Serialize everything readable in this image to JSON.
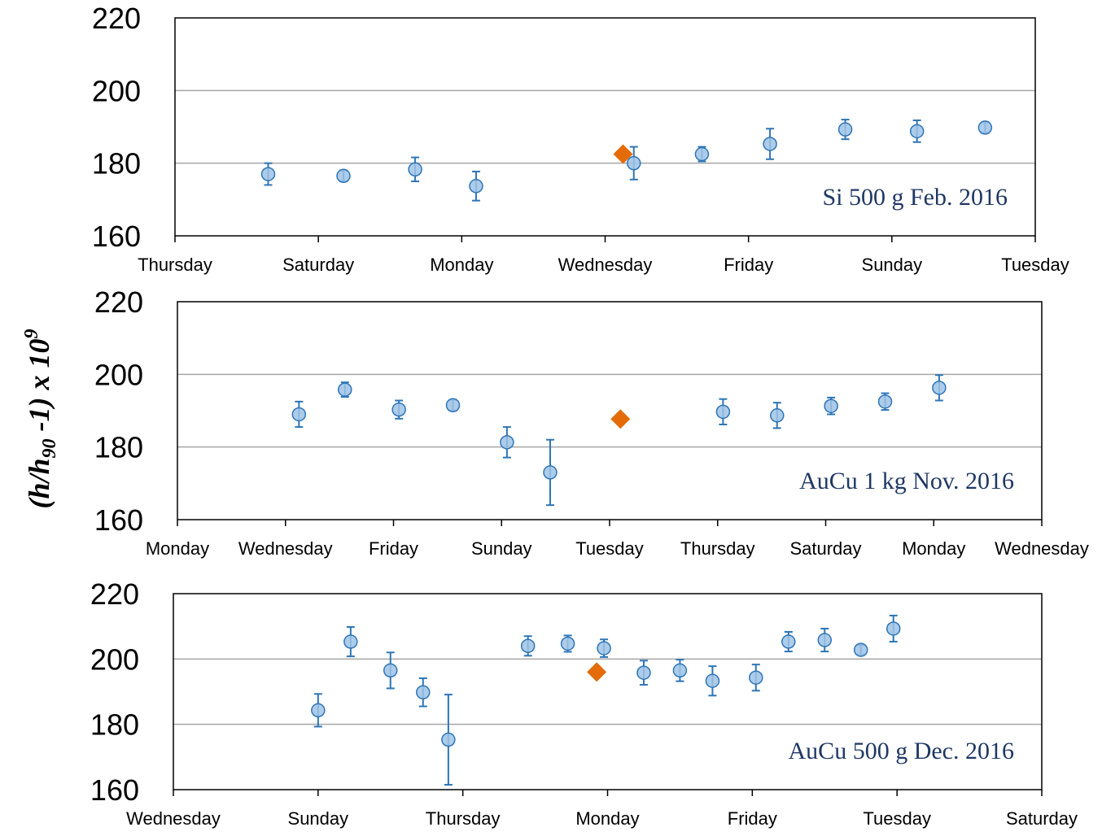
{
  "y_axis_label": {
    "base": "(",
    "h1": "h",
    "slash": "/",
    "h2": "h",
    "sub": "90",
    "rest": " -1) x 10",
    "sup": "9"
  },
  "colors": {
    "measured": "#9dc3e6",
    "measured_stroke": "#2e75b6",
    "errorbar": "#2e75b6",
    "reference": "#e36c09",
    "grid": "#a6a6a6",
    "frame": "#000000"
  },
  "chart_data": [
    {
      "type": "scatter",
      "annotation": "Si 500 g Feb. 2016",
      "ylim": [
        160,
        220
      ],
      "yticks": [
        160,
        180,
        200,
        220
      ],
      "xlim": [
        0,
        12
      ],
      "xtick_positions": [
        0,
        2,
        4,
        6,
        8,
        10,
        12
      ],
      "xtick_labels": [
        "Thursday",
        "Saturday",
        "Monday",
        "Wednesday",
        "Friday",
        "Sunday",
        "Tuesday"
      ],
      "grid": true,
      "points": [
        {
          "x": 1.3,
          "y": 177,
          "err": 3
        },
        {
          "x": 2.35,
          "y": 176.5,
          "err": 1.5
        },
        {
          "x": 3.35,
          "y": 178.3,
          "err": 3.3
        },
        {
          "x": 4.2,
          "y": 173.7,
          "err": 4
        },
        {
          "x": 6.4,
          "y": 180,
          "err": 4.5
        },
        {
          "x": 7.35,
          "y": 182.5,
          "err": 2
        },
        {
          "x": 8.3,
          "y": 185.3,
          "err": 4.2
        },
        {
          "x": 9.35,
          "y": 189.3,
          "err": 2.7
        },
        {
          "x": 10.35,
          "y": 188.8,
          "err": 3
        },
        {
          "x": 11.3,
          "y": 189.8,
          "err": 1.5
        }
      ],
      "reference": {
        "x": 6.25,
        "y": 182.5
      }
    },
    {
      "type": "scatter",
      "annotation": "AuCu 1 kg Nov. 2016",
      "ylim": [
        160,
        220
      ],
      "yticks": [
        160,
        180,
        200,
        220
      ],
      "xlim": [
        0,
        16
      ],
      "xtick_positions": [
        0,
        2,
        4,
        6,
        8,
        10,
        12,
        14,
        16
      ],
      "xtick_labels": [
        "Monday",
        "Wednesday",
        "Friday",
        "Sunday",
        "Tuesday",
        "Thursday",
        "Saturday",
        "Monday",
        "Wednesday"
      ],
      "grid": true,
      "points": [
        {
          "x": 2.25,
          "y": 189,
          "err": 3.5
        },
        {
          "x": 3.1,
          "y": 195.8,
          "err": 2
        },
        {
          "x": 4.1,
          "y": 190.3,
          "err": 2.5
        },
        {
          "x": 5.1,
          "y": 191.5,
          "err": 1.5
        },
        {
          "x": 6.1,
          "y": 181.3,
          "err": 4.2
        },
        {
          "x": 6.9,
          "y": 173,
          "err": 9
        },
        {
          "x": 10.1,
          "y": 189.7,
          "err": 3.5
        },
        {
          "x": 11.1,
          "y": 188.7,
          "err": 3.5
        },
        {
          "x": 12.1,
          "y": 191.3,
          "err": 2.3
        },
        {
          "x": 13.1,
          "y": 192.5,
          "err": 2.3
        },
        {
          "x": 14.1,
          "y": 196.3,
          "err": 3.5
        }
      ],
      "reference": {
        "x": 8.2,
        "y": 187.7
      }
    },
    {
      "type": "scatter",
      "annotation": "AuCu 500 g Dec. 2016",
      "ylim": [
        160,
        220
      ],
      "yticks": [
        160,
        180,
        200,
        220
      ],
      "xlim": [
        0,
        24
      ],
      "xtick_positions": [
        0,
        4,
        8,
        12,
        16,
        20,
        24
      ],
      "xtick_labels": [
        "Wednesday",
        "Sunday",
        "Thursday",
        "Monday",
        "Friday",
        "Tuesday",
        "Saturday"
      ],
      "grid": true,
      "points": [
        {
          "x": 4.0,
          "y": 184.3,
          "err": 5
        },
        {
          "x": 4.9,
          "y": 205.3,
          "err": 4.5
        },
        {
          "x": 6.0,
          "y": 196.5,
          "err": 5.5
        },
        {
          "x": 6.9,
          "y": 189.8,
          "err": 4.3
        },
        {
          "x": 7.6,
          "y": 175.3,
          "err": 13.8
        },
        {
          "x": 9.8,
          "y": 204,
          "err": 3
        },
        {
          "x": 10.9,
          "y": 204.7,
          "err": 2.5
        },
        {
          "x": 11.9,
          "y": 203.3,
          "err": 2.7
        },
        {
          "x": 13.0,
          "y": 195.8,
          "err": 3.7
        },
        {
          "x": 14.0,
          "y": 196.5,
          "err": 3.3
        },
        {
          "x": 14.9,
          "y": 193.3,
          "err": 4.5
        },
        {
          "x": 16.1,
          "y": 194.3,
          "err": 4
        },
        {
          "x": 17.0,
          "y": 205.3,
          "err": 3
        },
        {
          "x": 18.0,
          "y": 205.8,
          "err": 3.5
        },
        {
          "x": 19.0,
          "y": 202.8,
          "err": 1.5
        },
        {
          "x": 19.9,
          "y": 209.3,
          "err": 4
        }
      ],
      "reference": {
        "x": 11.7,
        "y": 196
      }
    }
  ]
}
